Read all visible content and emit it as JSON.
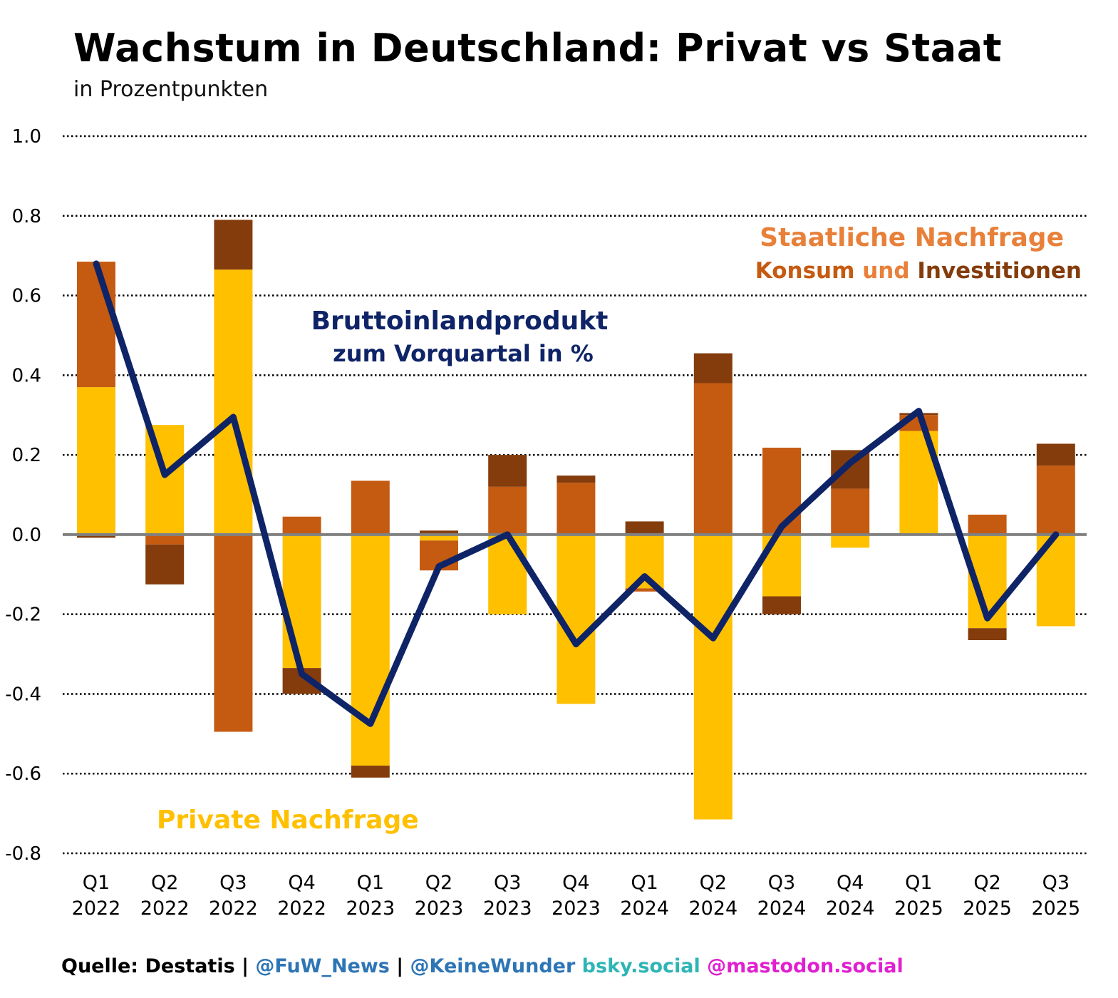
{
  "chart_data": {
    "type": "bar",
    "subtype": "stacked-bar-with-line",
    "title": "Wachstum in Deutschland: Privat vs Staat",
    "subtitle": "in Prozentpunkten",
    "xlabel": "",
    "ylabel": "",
    "ylim": [
      -0.8,
      1.0
    ],
    "yticks": [
      1.0,
      0.8,
      0.6,
      0.4,
      0.2,
      0.0,
      -0.2,
      -0.4,
      -0.6,
      -0.8
    ],
    "ytick_labels": [
      "1.0",
      "0.8",
      "0.6",
      "0.4",
      "0.2",
      "0.0",
      "-0.2",
      "-0.4",
      "-0.6",
      "-0.8"
    ],
    "grid": true,
    "categories": [
      {
        "q": "Q1",
        "y": "2022"
      },
      {
        "q": "Q2",
        "y": "2022"
      },
      {
        "q": "Q3",
        "y": "2022"
      },
      {
        "q": "Q4",
        "y": "2022"
      },
      {
        "q": "Q1",
        "y": "2023"
      },
      {
        "q": "Q2",
        "y": "2023"
      },
      {
        "q": "Q3",
        "y": "2023"
      },
      {
        "q": "Q4",
        "y": "2023"
      },
      {
        "q": "Q1",
        "y": "2024"
      },
      {
        "q": "Q2",
        "y": "2024"
      },
      {
        "q": "Q3",
        "y": "2024"
      },
      {
        "q": "Q4",
        "y": "2024"
      },
      {
        "q": "Q1",
        "y": "2025"
      },
      {
        "q": "Q2",
        "y": "2025"
      },
      {
        "q": "Q3",
        "y": "2025"
      }
    ],
    "series": [
      {
        "name": "Private Nachfrage",
        "kind": "bar",
        "color": "#FFC000",
        "values": [
          0.37,
          0.275,
          0.665,
          -0.335,
          -0.58,
          -0.015,
          -0.2,
          -0.425,
          -0.135,
          -0.715,
          -0.155,
          -0.033,
          0.26,
          -0.235,
          -0.23
        ]
      },
      {
        "name": "Staatlicher Konsum",
        "kind": "bar",
        "color": "#C55A11",
        "values": [
          0.315,
          -0.025,
          -0.495,
          0.045,
          0.135,
          -0.075,
          0.12,
          0.13,
          -0.008,
          0.38,
          0.218,
          0.115,
          0.04,
          0.05,
          0.173
        ]
      },
      {
        "name": "Staatliche Investitionen",
        "kind": "bar",
        "color": "#843C0C",
        "values": [
          -0.008,
          -0.1,
          0.125,
          -0.065,
          -0.03,
          0.01,
          0.08,
          0.018,
          0.033,
          0.075,
          -0.045,
          0.097,
          0.005,
          -0.03,
          0.055
        ]
      },
      {
        "name": "Bruttoinlandprodukt zum Vorquartal in %",
        "kind": "line",
        "color": "#0F2467",
        "values": [
          0.68,
          0.15,
          0.295,
          -0.35,
          -0.475,
          -0.08,
          0.0,
          -0.275,
          -0.105,
          -0.26,
          0.02,
          0.18,
          0.31,
          -0.21,
          0.0
        ]
      }
    ],
    "annotations": {
      "gdp_line1": "Bruttoinlandprodukt",
      "gdp_line2": "zum Vorquartal in %",
      "state_title": "Staatliche Nachfrage",
      "state_konsum": "Konsum",
      "state_und": " und ",
      "state_invest": "Investitionen",
      "private": "Private Nachfrage"
    },
    "colors": {
      "private": "#FFC000",
      "konsum": "#C55A11",
      "invest": "#843C0C",
      "gdp": "#0F2467",
      "zero_line": "#808080",
      "grid": "#000000",
      "state_title": "#E8803A",
      "und": "#E8803A"
    },
    "legend": "annotations-in-plot"
  },
  "footer": {
    "source": "Quelle: Destatis",
    "sep1": " | ",
    "fuw": "@FuW_News",
    "sep2": " | ",
    "keinewunder": "@KeineWunder",
    "bsky": " bsky.social",
    "mastodon": " @mastodon.social",
    "colors": {
      "source": "#000000",
      "fuw": "#2E75B6",
      "keinewunder": "#2E75B6",
      "bsky": "#2EB5B5",
      "mastodon": "#E020D0"
    }
  }
}
